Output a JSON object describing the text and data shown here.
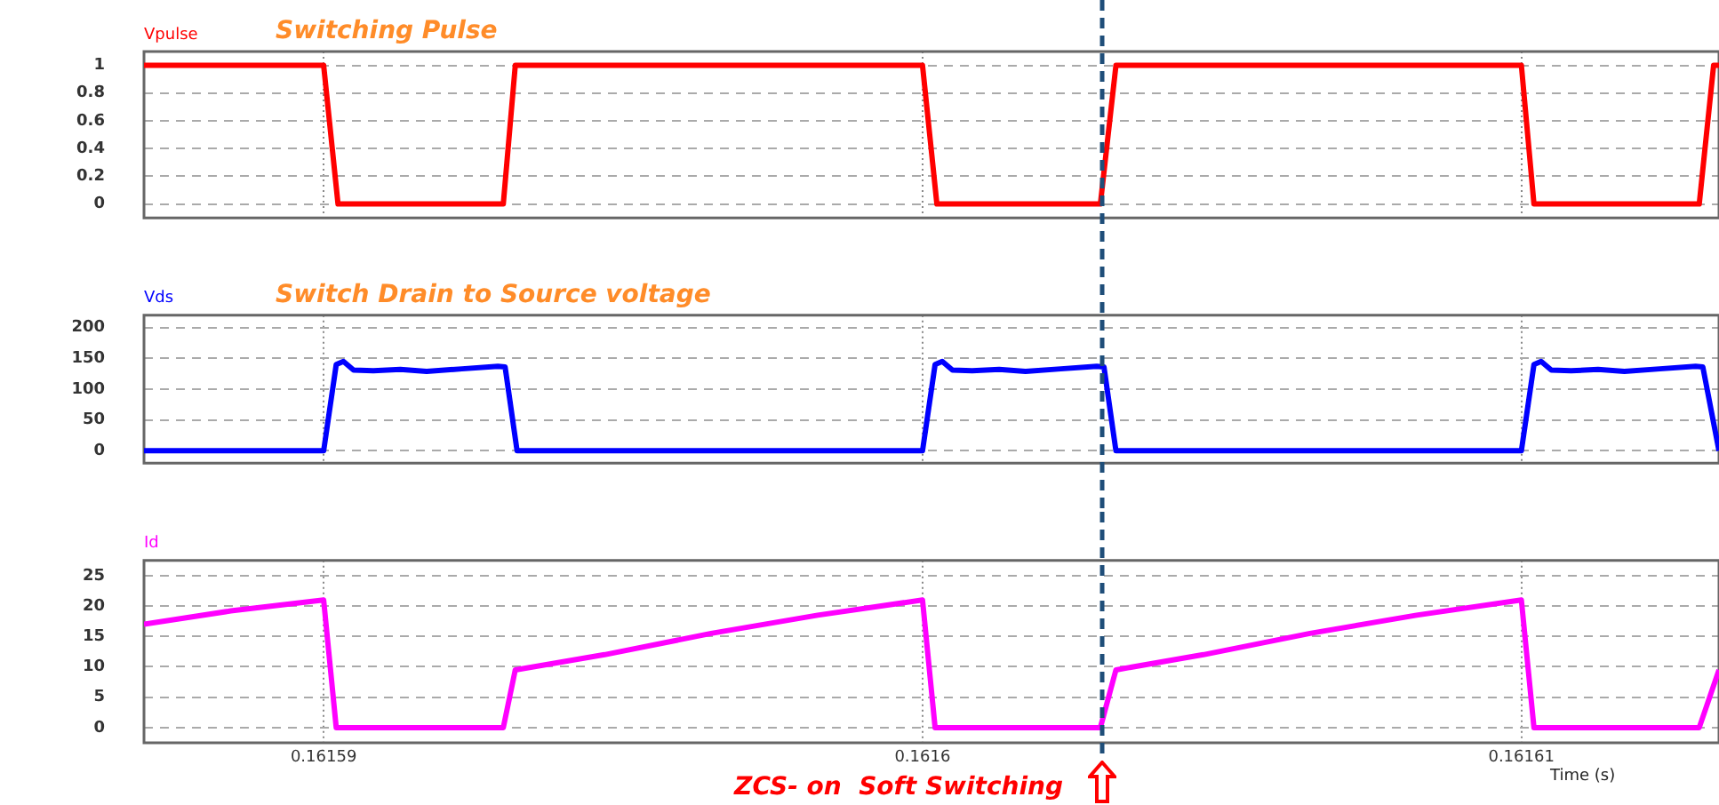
{
  "chart_data": [
    {
      "type": "line",
      "title": "Switching Pulse",
      "grid": true,
      "tick_labels": "y",
      "line_style": "solid",
      "marker": "none",
      "xlim": [
        0.161587,
        0.1616133
      ],
      "xticks": [
        0.16159,
        0.1616,
        0.16161
      ],
      "ylim": [
        -0.1,
        1.1
      ],
      "yticks": [
        0,
        0.2,
        0.4,
        0.6,
        0.8,
        1
      ],
      "ref_lines": [
        {
          "axis": "x",
          "value": 0.161603,
          "color": "#1f4e79",
          "line_style": "dashed"
        }
      ],
      "series": [
        {
          "name": "Vpulse",
          "color": "#ff0000",
          "x": [
            0.161587,
            0.16159,
            0.16159024,
            0.161593,
            0.1615932,
            0.1616,
            0.16160024,
            0.16160297,
            0.16160323,
            0.16161,
            0.16161021,
            0.16161297,
            0.16161321,
            0.1616133
          ],
          "values": [
            1,
            1,
            0,
            0,
            1,
            1,
            0,
            0,
            1,
            1,
            0,
            0,
            1,
            1
          ]
        }
      ]
    },
    {
      "type": "line",
      "title": "Switch Drain to Source voltage",
      "grid": true,
      "tick_labels": "y",
      "line_style": "solid",
      "marker": "none",
      "xlim": [
        0.161587,
        0.1616133
      ],
      "xticks": [
        0.16159,
        0.1616,
        0.16161
      ],
      "ylim": [
        -20,
        220
      ],
      "yticks": [
        0,
        50,
        100,
        150,
        200
      ],
      "ref_lines": [
        {
          "axis": "x",
          "value": 0.161603,
          "color": "#1f4e79",
          "line_style": "dashed"
        }
      ],
      "series": [
        {
          "name": "Vds",
          "color": "#0000ff",
          "x": [
            0.161587,
            0.16159,
            0.16159021,
            0.16159033,
            0.1615905,
            0.16159083,
            0.16159128,
            0.16159172,
            0.16159231,
            0.16159291,
            0.16159303,
            0.16159323,
            0.1616,
            0.16160021,
            0.16160033,
            0.1616005,
            0.16160083,
            0.16160128,
            0.16160172,
            0.16160231,
            0.16160291,
            0.16160303,
            0.16160323,
            0.16161,
            0.16161021,
            0.16161033,
            0.1616105,
            0.16161083,
            0.16161128,
            0.16161172,
            0.16161231,
            0.16161291,
            0.16161303,
            0.1616133
          ],
          "values": [
            0,
            0,
            140,
            145,
            131,
            130,
            132,
            129,
            133,
            137,
            136,
            0,
            0,
            140,
            145,
            131,
            130,
            132,
            129,
            133,
            137,
            136,
            0,
            0,
            140,
            145,
            131,
            130,
            132,
            129,
            133,
            137,
            136,
            0
          ]
        }
      ]
    },
    {
      "type": "line",
      "xlabel": "Time (s)",
      "grid": true,
      "line_style": "solid",
      "marker": "none",
      "xlim": [
        0.161587,
        0.1616133
      ],
      "xticks": [
        0.16159,
        0.1616,
        0.16161
      ],
      "ylim": [
        -2.5,
        27.5
      ],
      "yticks": [
        0,
        5,
        10,
        15,
        20,
        25
      ],
      "ref_lines": [
        {
          "axis": "x",
          "value": 0.161603,
          "color": "#1f4e79",
          "line_style": "dashed",
          "label": "ZCS- on  Soft Switching"
        }
      ],
      "series": [
        {
          "name": "Id",
          "color": "#ff00ff",
          "x": [
            0.161587,
            0.16158845,
            0.16159,
            0.16159021,
            0.161593,
            0.1615932,
            0.16159469,
            0.16159647,
            0.16159825,
            0.1616,
            0.16160021,
            0.16160297,
            0.16160323,
            0.16160469,
            0.16160647,
            0.16160825,
            0.16161,
            0.16161021,
            0.16161297,
            0.1616133
          ],
          "values": [
            17,
            19.2,
            21,
            0,
            0,
            9.5,
            12,
            15.5,
            18.5,
            21,
            0,
            0,
            9.5,
            12,
            15.5,
            18.5,
            21,
            0,
            0,
            9.5
          ]
        }
      ]
    }
  ]
}
